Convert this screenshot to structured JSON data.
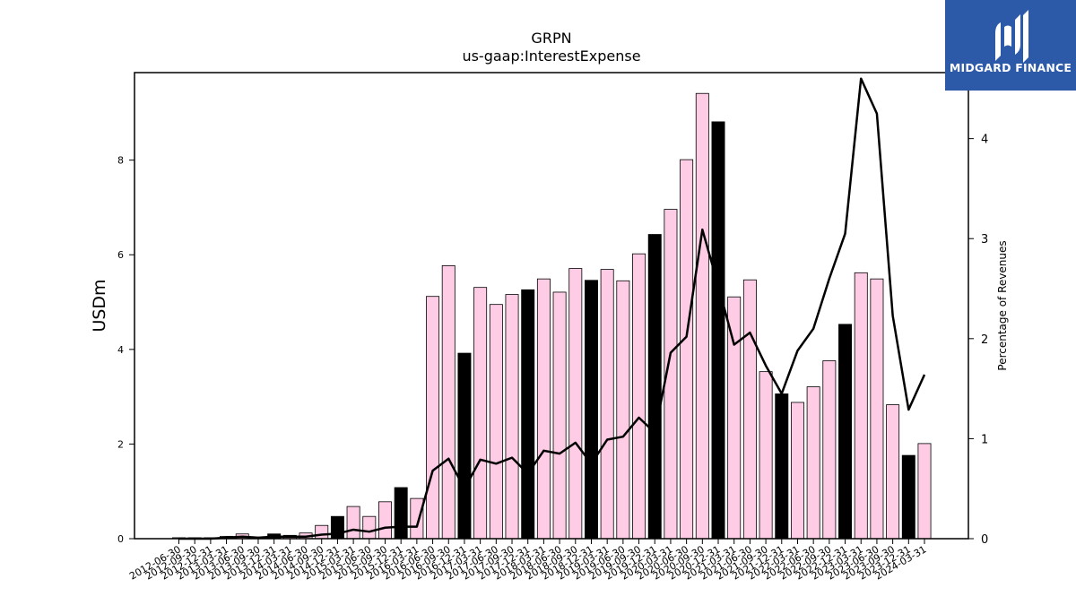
{
  "chart_data": {
    "type": "bar",
    "title": "GRPN",
    "subtitle": "us-gaap:InterestExpense",
    "ylabel": "USDm",
    "y2label": "Percentage of Revenues",
    "ylim": [
      0,
      9.85
    ],
    "y2lim": [
      0,
      4.66
    ],
    "yticks": [
      0,
      2,
      4,
      6,
      8
    ],
    "y2ticks": [
      0,
      1,
      2,
      3,
      4
    ],
    "categories": [
      "2012-06-30",
      "2012-09-30",
      "2012-12-31",
      "2013-03-31",
      "2013-06-30",
      "2013-09-30",
      "2013-12-31",
      "2014-03-31",
      "2014-06-30",
      "2014-09-30",
      "2014-12-31",
      "2015-03-31",
      "2015-06-30",
      "2015-09-30",
      "2015-12-31",
      "2016-03-31",
      "2016-06-30",
      "2016-09-30",
      "2016-12-31",
      "2017-03-31",
      "2017-06-30",
      "2017-09-30",
      "2017-12-31",
      "2018-03-31",
      "2018-06-30",
      "2018-09-30",
      "2018-12-31",
      "2019-03-31",
      "2019-06-30",
      "2019-09-30",
      "2019-12-31",
      "2020-03-31",
      "2020-06-30",
      "2020-09-30",
      "2020-12-31",
      "2021-03-31",
      "2021-06-30",
      "2021-09-30",
      "2021-12-31",
      "2022-03-31",
      "2022-06-30",
      "2022-09-30",
      "2022-12-31",
      "2023-03-31",
      "2023-06-30",
      "2023-09-30",
      "2023-12-31",
      "2024-03-31"
    ],
    "bars": {
      "name": "InterestExpense",
      "values": [
        0.02,
        0.02,
        0.02,
        0.05,
        0.1,
        0.03,
        0.1,
        0.07,
        0.12,
        0.28,
        0.47,
        0.68,
        0.47,
        0.78,
        1.08,
        0.85,
        5.12,
        5.77,
        3.92,
        5.31,
        4.95,
        5.16,
        5.26,
        5.49,
        5.21,
        5.71,
        5.46,
        5.69,
        5.45,
        6.02,
        6.43,
        6.96,
        8.01,
        9.41,
        8.81,
        5.11,
        5.47,
        3.53,
        3.06,
        2.88,
        3.21,
        3.76,
        4.53,
        5.62,
        5.49,
        2.83,
        1.76,
        2.01
      ],
      "highlight": [
        false,
        false,
        false,
        false,
        false,
        false,
        true,
        false,
        false,
        false,
        true,
        false,
        false,
        false,
        true,
        false,
        false,
        false,
        true,
        false,
        false,
        false,
        true,
        false,
        false,
        false,
        true,
        false,
        false,
        false,
        true,
        false,
        false,
        false,
        true,
        false,
        false,
        false,
        true,
        false,
        false,
        false,
        true,
        false,
        false,
        false,
        true,
        false
      ],
      "color": "#ffcce6",
      "highlight_color": "#000000"
    },
    "line": {
      "name": "Percentage of Revenues",
      "values": [
        0.0,
        0.0,
        0.0,
        0.01,
        0.02,
        0.01,
        0.02,
        0.02,
        0.02,
        0.04,
        0.05,
        0.09,
        0.07,
        0.11,
        0.12,
        0.12,
        0.68,
        0.8,
        0.5,
        0.79,
        0.75,
        0.81,
        0.65,
        0.88,
        0.85,
        0.96,
        0.75,
        0.99,
        1.02,
        1.21,
        1.06,
        1.86,
        2.02,
        3.09,
        2.53,
        1.94,
        2.06,
        1.73,
        1.45,
        1.88,
        2.1,
        2.6,
        3.05,
        4.6,
        4.25,
        2.23,
        1.29,
        1.64
      ],
      "color": "#000000"
    }
  },
  "logo": {
    "text": "MIDGARD FINANCE",
    "color": "#2d5aa8"
  }
}
